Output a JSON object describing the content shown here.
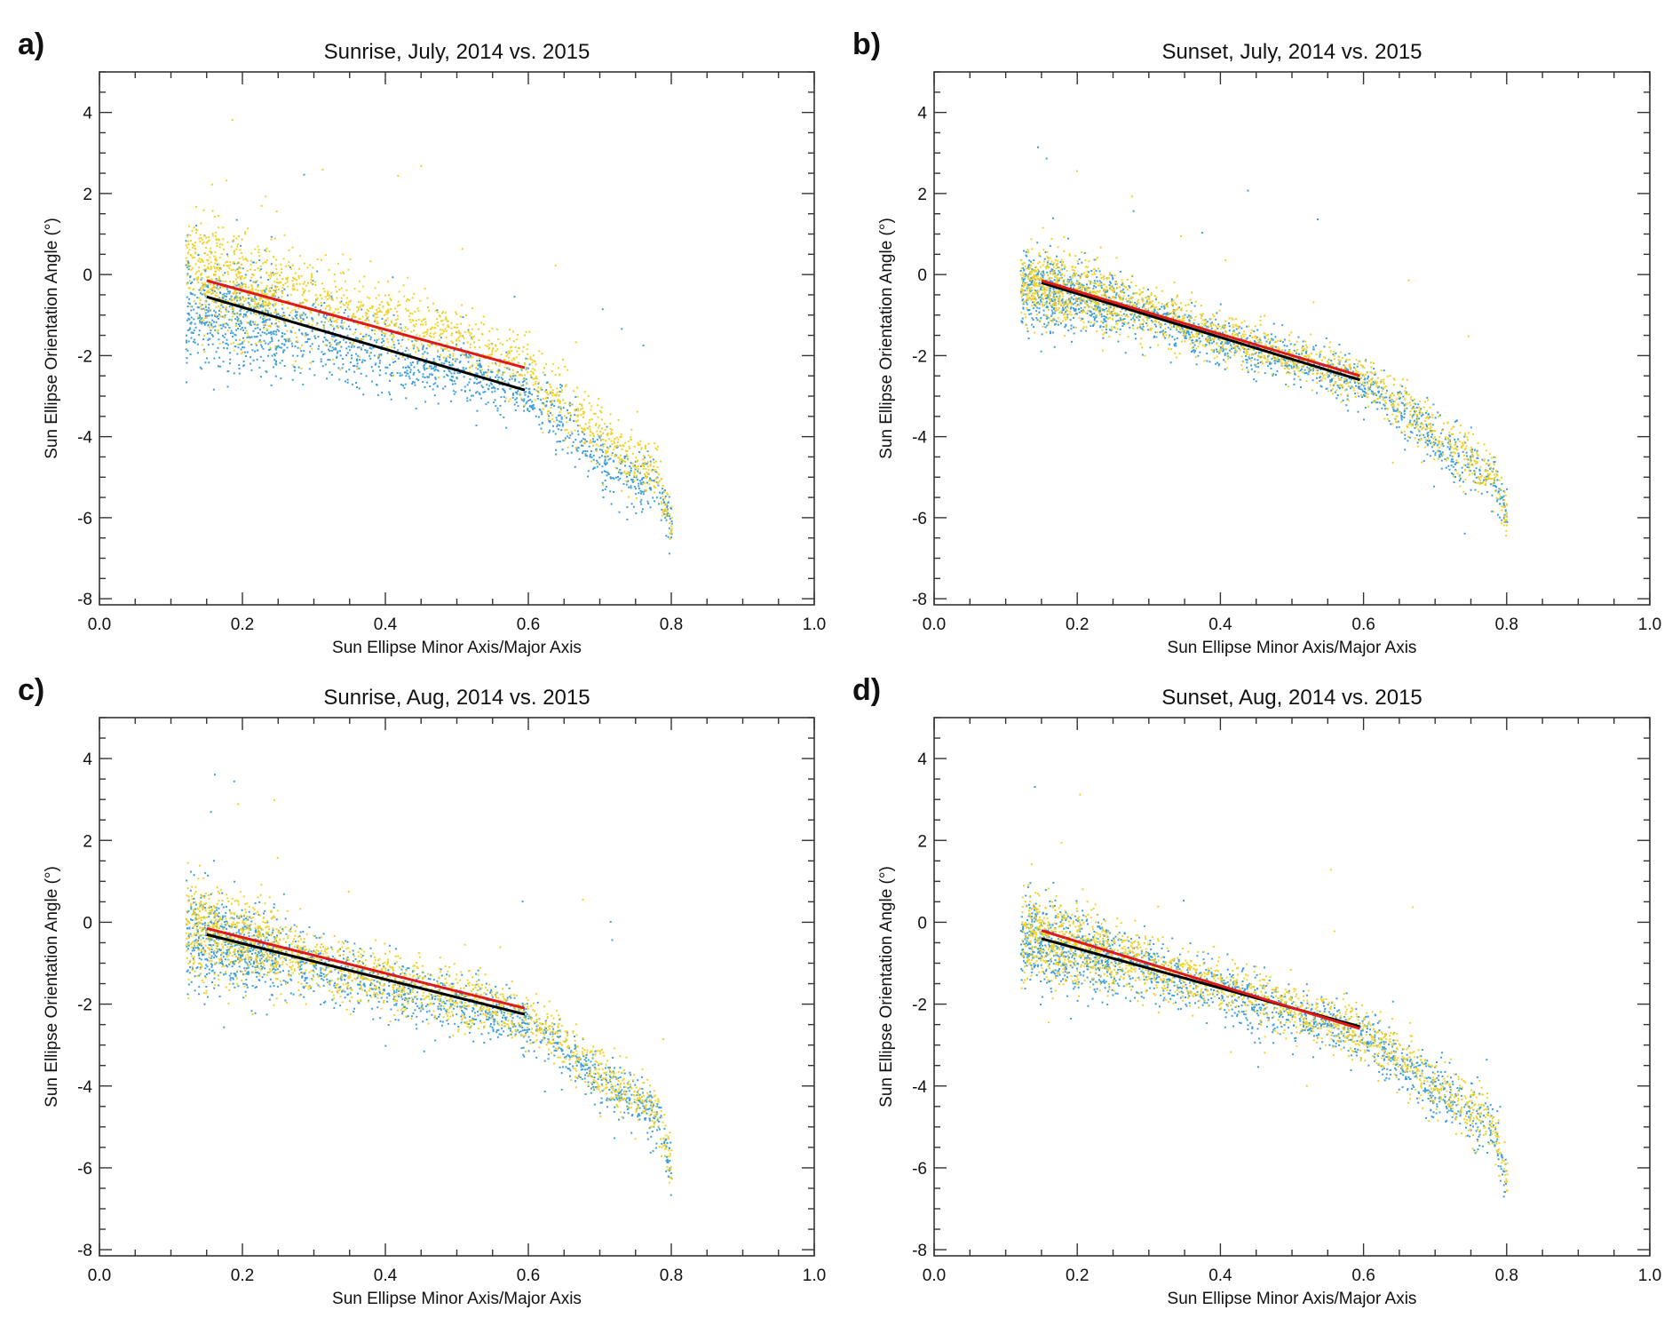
{
  "colors": {
    "series_2014": "#3fa0d8",
    "series_2015": "#f0d228",
    "fit_a": "#e01818",
    "fit_b": "#000000",
    "axes": "#333333"
  },
  "chart_data": [
    {
      "type": "scatter",
      "letter": "a)",
      "title": "Sunrise, July, 2014 vs. 2015",
      "xlabel": "Sun Ellipse Minor Axis/Major Axis",
      "ylabel": "Sun Ellipse Orientation Angle (°)",
      "xlim": [
        0.0,
        1.0
      ],
      "ylim": [
        -8.15,
        5.0
      ],
      "xticks": [
        "0.0",
        "0.2",
        "0.4",
        "0.6",
        "0.8",
        "1.0"
      ],
      "yticks": [
        "-8",
        "-6",
        "-4",
        "-2",
        "0",
        "2",
        "4"
      ],
      "xminor": 0.05,
      "yminor": 0.5,
      "grid": false,
      "scatter_trend": {
        "x": [
          0.13,
          0.2,
          0.3,
          0.4,
          0.5,
          0.6,
          0.65,
          0.72,
          0.78,
          0.8
        ],
        "y_2014": [
          -0.8,
          -1.0,
          -1.5,
          -2.0,
          -2.4,
          -2.9,
          -3.6,
          -4.8,
          -5.2,
          -6.3
        ],
        "y_2015": [
          0.3,
          -0.2,
          -0.6,
          -1.1,
          -1.6,
          -2.3,
          -3.2,
          -4.3,
          -4.9,
          -6.3
        ],
        "spread": [
          1.0,
          0.9,
          0.7,
          0.6,
          0.5,
          0.5,
          0.5,
          0.5,
          0.5,
          0.4
        ]
      },
      "fit_lines": [
        {
          "color": "#000000",
          "x": [
            0.15,
            0.595
          ],
          "y": [
            -0.55,
            -2.85
          ]
        },
        {
          "color": "#e01818",
          "x": [
            0.15,
            0.595
          ],
          "y": [
            -0.15,
            -2.3
          ]
        }
      ]
    },
    {
      "type": "scatter",
      "letter": "b)",
      "title": "Sunset, July, 2014 vs. 2015",
      "xlabel": "Sun Ellipse Minor Axis/Major Axis",
      "ylabel": "Sun Ellipse Orientation Angle (°)",
      "xlim": [
        0.0,
        1.0
      ],
      "ylim": [
        -8.15,
        5.0
      ],
      "xticks": [
        "0.0",
        "0.2",
        "0.4",
        "0.6",
        "0.8",
        "1.0"
      ],
      "yticks": [
        "-8",
        "-6",
        "-4",
        "-2",
        "0",
        "2",
        "4"
      ],
      "xminor": 0.05,
      "yminor": 0.5,
      "grid": false,
      "scatter_trend": {
        "x": [
          0.13,
          0.2,
          0.3,
          0.4,
          0.5,
          0.6,
          0.65,
          0.72,
          0.78,
          0.8
        ],
        "y_2014": [
          -0.3,
          -0.5,
          -1.0,
          -1.6,
          -2.1,
          -2.7,
          -3.3,
          -4.4,
          -5.0,
          -6.0
        ],
        "y_2015": [
          -0.2,
          -0.4,
          -0.9,
          -1.5,
          -2.0,
          -2.6,
          -3.2,
          -4.2,
          -4.9,
          -6.0
        ],
        "spread": [
          0.6,
          0.6,
          0.45,
          0.35,
          0.35,
          0.4,
          0.45,
          0.45,
          0.4,
          0.4
        ]
      },
      "fit_lines": [
        {
          "color": "#000000",
          "x": [
            0.15,
            0.595
          ],
          "y": [
            -0.2,
            -2.6
          ]
        },
        {
          "color": "#e01818",
          "x": [
            0.15,
            0.595
          ],
          "y": [
            -0.15,
            -2.5
          ]
        }
      ]
    },
    {
      "type": "scatter",
      "letter": "c)",
      "title": "Sunrise, Aug, 2014 vs. 2015",
      "xlabel": "Sun Ellipse Minor Axis/Major Axis",
      "ylabel": "Sun Ellipse Orientation Angle (°)",
      "xlim": [
        0.0,
        1.0
      ],
      "ylim": [
        -8.15,
        5.0
      ],
      "xticks": [
        "0.0",
        "0.2",
        "0.4",
        "0.6",
        "0.8",
        "1.0"
      ],
      "yticks": [
        "-8",
        "-6",
        "-4",
        "-2",
        "0",
        "2",
        "4"
      ],
      "xminor": 0.05,
      "yminor": 0.5,
      "grid": false,
      "scatter_trend": {
        "x": [
          0.13,
          0.2,
          0.3,
          0.4,
          0.5,
          0.6,
          0.65,
          0.72,
          0.78,
          0.8
        ],
        "y_2014": [
          -0.4,
          -0.6,
          -1.1,
          -1.6,
          -2.0,
          -2.5,
          -3.2,
          -4.1,
          -4.8,
          -6.2
        ],
        "y_2015": [
          -0.1,
          -0.4,
          -0.9,
          -1.4,
          -1.8,
          -2.3,
          -3.0,
          -4.0,
          -4.6,
          -6.2
        ],
        "spread": [
          0.8,
          0.7,
          0.55,
          0.5,
          0.45,
          0.45,
          0.45,
          0.45,
          0.45,
          0.45
        ]
      },
      "fit_lines": [
        {
          "color": "#000000",
          "x": [
            0.15,
            0.595
          ],
          "y": [
            -0.3,
            -2.25
          ]
        },
        {
          "color": "#e01818",
          "x": [
            0.15,
            0.595
          ],
          "y": [
            -0.15,
            -2.1
          ]
        }
      ]
    },
    {
      "type": "scatter",
      "letter": "d)",
      "title": "Sunset, Aug, 2014 vs. 2015",
      "xlabel": "Sun Ellipse Minor Axis/Major Axis",
      "ylabel": "Sun Ellipse Orientation Angle (°)",
      "xlim": [
        0.0,
        1.0
      ],
      "ylim": [
        -8.15,
        5.0
      ],
      "xticks": [
        "0.0",
        "0.2",
        "0.4",
        "0.6",
        "0.8",
        "1.0"
      ],
      "yticks": [
        "-8",
        "-6",
        "-4",
        "-2",
        "0",
        "2",
        "4"
      ],
      "xminor": 0.05,
      "yminor": 0.5,
      "grid": false,
      "scatter_trend": {
        "x": [
          0.13,
          0.2,
          0.3,
          0.4,
          0.5,
          0.6,
          0.65,
          0.72,
          0.78,
          0.8
        ],
        "y_2014": [
          -0.4,
          -0.7,
          -1.2,
          -1.7,
          -2.2,
          -2.8,
          -3.4,
          -4.3,
          -5.0,
          -6.3
        ],
        "y_2015": [
          -0.2,
          -0.5,
          -1.1,
          -1.6,
          -2.1,
          -2.7,
          -3.3,
          -4.2,
          -4.9,
          -6.2
        ],
        "spread": [
          0.7,
          0.65,
          0.5,
          0.45,
          0.45,
          0.45,
          0.5,
          0.5,
          0.45,
          0.45
        ]
      },
      "fit_lines": [
        {
          "color": "#000000",
          "x": [
            0.15,
            0.595
          ],
          "y": [
            -0.4,
            -2.55
          ]
        },
        {
          "color": "#e01818",
          "x": [
            0.15,
            0.595
          ],
          "y": [
            -0.2,
            -2.6
          ]
        }
      ]
    }
  ]
}
